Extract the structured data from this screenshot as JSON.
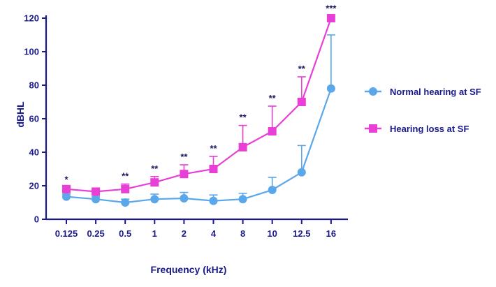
{
  "chart_data": {
    "type": "line",
    "title": "",
    "xlabel": "Frequency (kHz)",
    "ylabel": "dBHL",
    "categories": [
      "0.125",
      "0.25",
      "0.5",
      "1",
      "2",
      "4",
      "8",
      "10",
      "12.5",
      "16"
    ],
    "ylim": [
      0,
      120
    ],
    "yticks": [
      0,
      20,
      40,
      60,
      80,
      100,
      120
    ],
    "legend_position": "right",
    "significance": [
      "*",
      "",
      "**",
      "**",
      "**",
      "**",
      "**",
      "**",
      "**",
      "***"
    ],
    "series": [
      {
        "name": "Normal hearing at SF",
        "color": "#5aa7ea",
        "marker": "circle",
        "values": [
          13.5,
          12,
          10,
          12,
          12.5,
          11,
          12,
          17.5,
          28,
          78
        ],
        "error_upper": [
          15,
          13.5,
          12,
          15,
          16,
          14.5,
          15.5,
          25,
          44,
          110
        ],
        "error_side": "up"
      },
      {
        "name": "Hearing loss at SF",
        "color": "#e83fd6",
        "marker": "square",
        "values": [
          18,
          16.5,
          18,
          22,
          27,
          30,
          43,
          52.5,
          70,
          120
        ],
        "error_upper": [
          19,
          17.5,
          21,
          25.5,
          32.5,
          37.5,
          56,
          67.5,
          85,
          121
        ],
        "error_side": "up"
      }
    ]
  }
}
